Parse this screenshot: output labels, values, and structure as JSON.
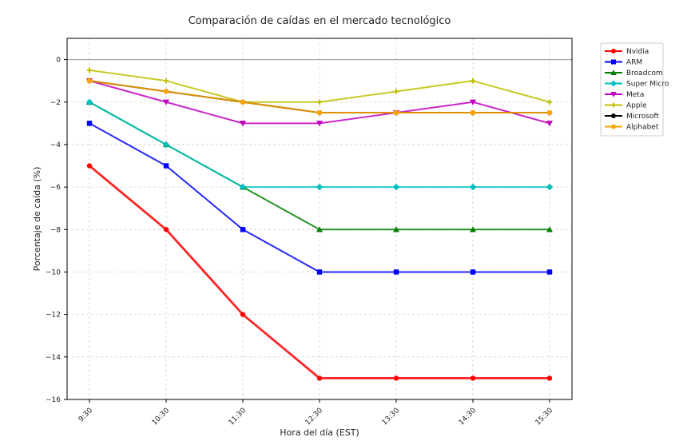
{
  "chart_data": {
    "type": "line",
    "title": "Comparación de caídas en el mercado tecnológico",
    "xlabel": "Hora del día (EST)",
    "ylabel": "Porcentaje de caída (%)",
    "categories": [
      "9:30",
      "10:30",
      "11:30",
      "12:30",
      "13:30",
      "14:30",
      "15:30"
    ],
    "ylim": [
      -16,
      1
    ],
    "yticks": [
      0,
      -2,
      -4,
      -6,
      -8,
      -10,
      -12,
      -14,
      -16
    ],
    "grid": true,
    "zero_line": true,
    "legend_position": "outside-top-right",
    "series": [
      {
        "name": "Nvidia",
        "color": "#ff0000",
        "marker": "circle",
        "values": [
          -5,
          -8,
          -12,
          -15,
          -15,
          -15,
          -15
        ]
      },
      {
        "name": "ARM",
        "color": "#0000ff",
        "marker": "square",
        "values": [
          -3,
          -5,
          -8,
          -10,
          -10,
          -10,
          -10
        ]
      },
      {
        "name": "Broadcom",
        "color": "#008000",
        "marker": "triangle-up",
        "values": [
          -2,
          -4,
          -6,
          -8,
          -8,
          -8,
          -8
        ]
      },
      {
        "name": "Super Micro",
        "color": "#00bfbf",
        "marker": "diamond",
        "values": [
          -2,
          -4,
          -6,
          -6,
          -6,
          -6,
          -6
        ]
      },
      {
        "name": "Meta",
        "color": "#bf00bf",
        "marker": "triangle-down",
        "values": [
          -1,
          -2,
          -3,
          -3,
          -2.5,
          -2,
          -3
        ]
      },
      {
        "name": "Apple",
        "color": "#bfbf00",
        "marker": "plus",
        "values": [
          -0.5,
          -1,
          -2,
          -2,
          -1.5,
          -1,
          -2
        ]
      },
      {
        "name": "Microsoft",
        "color": "#000000",
        "marker": "circle",
        "values": [
          -1,
          -1.5,
          -2,
          -2.5,
          -2.5,
          -2.5,
          -2.5
        ]
      },
      {
        "name": "Alphabet",
        "color": "#ffa500",
        "marker": "circle",
        "values": [
          -1,
          -1.5,
          -2,
          -2.5,
          -2.5,
          -2.5,
          -2.5
        ]
      }
    ]
  }
}
